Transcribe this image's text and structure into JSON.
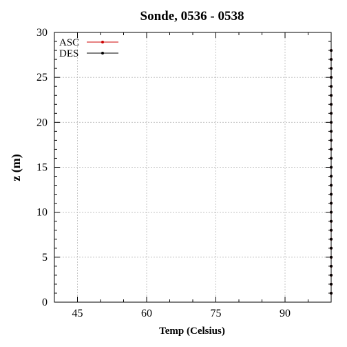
{
  "chart_data": {
    "type": "line",
    "title": "Sonde, 0536 - 0538",
    "xlabel": "Temp (Celsius)",
    "ylabel": "z (m)",
    "xlim": [
      40,
      100
    ],
    "ylim": [
      0,
      30
    ],
    "xticks": [
      45,
      60,
      75,
      90
    ],
    "yticks": [
      0,
      5,
      10,
      15,
      20,
      25,
      30
    ],
    "grid": true,
    "legend_position": "top-left",
    "series": [
      {
        "name": "ASC",
        "color": "#cc0000",
        "x": [
          100,
          100,
          100,
          100,
          100,
          100,
          100,
          100,
          100,
          100,
          100,
          100,
          100,
          100,
          100,
          100,
          100,
          100,
          100,
          100,
          100,
          100,
          100,
          100,
          100,
          100,
          100,
          100
        ],
        "y": [
          1,
          2,
          3,
          4,
          5,
          6,
          7,
          8,
          9,
          10,
          11,
          12,
          13,
          14,
          15,
          16,
          17,
          18,
          19,
          20,
          21,
          22,
          23,
          24,
          25,
          26,
          27,
          28
        ]
      },
      {
        "name": "DES",
        "color": "#000000",
        "x": [
          100,
          100,
          100,
          100,
          100,
          100,
          100,
          100,
          100,
          100,
          100,
          100,
          100,
          100,
          100,
          100,
          100,
          100,
          100,
          100,
          100,
          100,
          100,
          100,
          100,
          100,
          100,
          100
        ],
        "y": [
          1,
          2,
          3,
          4,
          5,
          6,
          7,
          8,
          9,
          10,
          11,
          12,
          13,
          14,
          15,
          16,
          17,
          18,
          19,
          20,
          21,
          22,
          23,
          24,
          25,
          26,
          27,
          28
        ]
      }
    ]
  }
}
